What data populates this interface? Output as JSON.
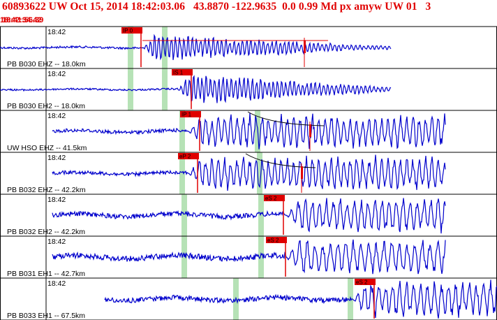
{
  "header": {
    "event_line": "60893622 UW Oct 15, 2014 18:42:03.06   43.8870 -122.9635  0.0 0.99 Md px amyw UW 01   3",
    "start_time": "18:41:56.39",
    "end_time": "18:42:34.42"
  },
  "colors": {
    "trace": "#0000cc",
    "pick": "#e00000",
    "window": "#b6e2b6",
    "frame": "#000000"
  },
  "channels": [
    {
      "time_label": "18:42",
      "station": "PB B030 EHZ -- 18.0km",
      "picks": [
        "IP 0"
      ],
      "has_s_mark": true,
      "has_curve": false
    },
    {
      "time_label": "18:42",
      "station": "PB B030 EH2 -- 18.0km",
      "picks": [
        "IS 1"
      ],
      "has_s_mark": false,
      "has_curve": false
    },
    {
      "time_label": "18:42",
      "station": "UW HSO EHZ -- 41.5km",
      "picks": [
        "IP 1"
      ],
      "has_s_mark": true,
      "has_curve": true
    },
    {
      "time_label": "18:42",
      "station": "PB B032 EHZ -- 42.2km",
      "picks": [
        "eP 2"
      ],
      "has_s_mark": true,
      "has_curve": true
    },
    {
      "time_label": "18:42",
      "station": "PB B032 EH2 -- 42.2km",
      "picks": [
        "eS 2"
      ],
      "has_s_mark": false,
      "has_curve": false
    },
    {
      "time_label": "18:42",
      "station": "PB B031 EH1 -- 42.7km",
      "picks": [
        "eS 2"
      ],
      "has_s_mark": false,
      "has_curve": false
    },
    {
      "time_label": "18:42",
      "station": "PB B033 EH1 -- 67.5km",
      "picks": [
        "eS 2"
      ],
      "has_s_mark": false,
      "has_curve": false
    }
  ]
}
